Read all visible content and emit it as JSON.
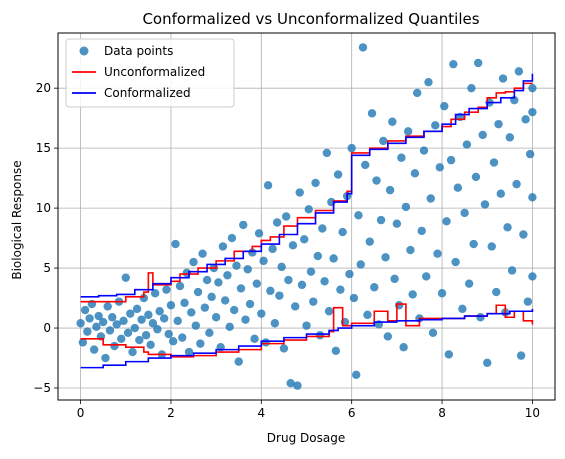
{
  "chart_data": {
    "type": "scatter",
    "title": "Conformalized vs Unconformalized Quantiles",
    "xlabel": "Drug Dosage",
    "ylabel": "Biological Response",
    "xlim": [
      -0.5,
      10.5
    ],
    "ylim": [
      -6.0,
      24.6
    ],
    "xticks": [
      0,
      2,
      4,
      6,
      8,
      10
    ],
    "yticks": [
      -5,
      0,
      5,
      10,
      15,
      20
    ],
    "grid": true,
    "legend_position": "top-left",
    "legend": [
      {
        "label": "Data points",
        "kind": "marker",
        "color": "#1f77b4"
      },
      {
        "label": "Unconformalized",
        "kind": "line",
        "color": "#ff0000"
      },
      {
        "label": "Conformalized",
        "kind": "line",
        "color": "#0000ff"
      }
    ],
    "series": [
      {
        "name": "Data points",
        "type": "scatter",
        "color": "#1f77b4",
        "points": [
          [
            0.0,
            0.4
          ],
          [
            0.05,
            -1.2
          ],
          [
            0.1,
            1.5
          ],
          [
            0.15,
            -0.3
          ],
          [
            0.2,
            0.8
          ],
          [
            0.25,
            2.0
          ],
          [
            0.3,
            -1.8
          ],
          [
            0.35,
            0.1
          ],
          [
            0.4,
            1.0
          ],
          [
            0.45,
            -0.7
          ],
          [
            0.5,
            0.5
          ],
          [
            0.55,
            -2.5
          ],
          [
            0.6,
            1.8
          ],
          [
            0.65,
            -0.2
          ],
          [
            0.7,
            0.9
          ],
          [
            0.75,
            -1.5
          ],
          [
            0.8,
            0.3
          ],
          [
            0.85,
            2.2
          ],
          [
            0.9,
            -0.9
          ],
          [
            0.95,
            0.6
          ],
          [
            1.0,
            4.2
          ],
          [
            1.05,
            -0.4
          ],
          [
            1.1,
            1.2
          ],
          [
            1.15,
            -2.0
          ],
          [
            1.2,
            0.0
          ],
          [
            1.25,
            1.6
          ],
          [
            1.3,
            -1.0
          ],
          [
            1.35,
            0.7
          ],
          [
            1.4,
            2.5
          ],
          [
            1.45,
            -0.6
          ],
          [
            1.5,
            1.1
          ],
          [
            1.55,
            -1.4
          ],
          [
            1.6,
            0.4
          ],
          [
            1.65,
            2.9
          ],
          [
            1.7,
            -0.1
          ],
          [
            1.75,
            1.4
          ],
          [
            1.8,
            -2.2
          ],
          [
            1.85,
            0.8
          ],
          [
            1.9,
            3.2
          ],
          [
            1.95,
            -0.5
          ],
          [
            2.0,
            1.9
          ],
          [
            2.05,
            -1.1
          ],
          [
            2.1,
            7.0
          ],
          [
            2.15,
            0.6
          ],
          [
            2.2,
            3.5
          ],
          [
            2.25,
            -0.8
          ],
          [
            2.3,
            2.1
          ],
          [
            2.35,
            4.6
          ],
          [
            2.4,
            -2.0
          ],
          [
            2.45,
            1.3
          ],
          [
            2.5,
            5.5
          ],
          [
            2.55,
            0.2
          ],
          [
            2.6,
            3.0
          ],
          [
            2.65,
            -1.3
          ],
          [
            2.7,
            6.2
          ],
          [
            2.75,
            1.7
          ],
          [
            2.8,
            4.0
          ],
          [
            2.85,
            -0.4
          ],
          [
            2.9,
            2.6
          ],
          [
            2.95,
            5.0
          ],
          [
            3.0,
            0.9
          ],
          [
            3.05,
            3.8
          ],
          [
            3.1,
            -1.6
          ],
          [
            3.15,
            6.8
          ],
          [
            3.2,
            2.3
          ],
          [
            3.25,
            4.4
          ],
          [
            3.3,
            0.1
          ],
          [
            3.35,
            7.5
          ],
          [
            3.4,
            1.5
          ],
          [
            3.45,
            5.2
          ],
          [
            3.5,
            -2.8
          ],
          [
            3.55,
            3.3
          ],
          [
            3.6,
            8.6
          ],
          [
            3.65,
            0.7
          ],
          [
            3.7,
            4.9
          ],
          [
            3.75,
            2.0
          ],
          [
            3.8,
            6.3
          ],
          [
            3.85,
            -0.9
          ],
          [
            3.9,
            3.7
          ],
          [
            3.95,
            7.9
          ],
          [
            4.0,
            1.2
          ],
          [
            4.05,
            5.6
          ],
          [
            4.1,
            -1.2
          ],
          [
            4.15,
            11.9
          ],
          [
            4.2,
            3.1
          ],
          [
            4.25,
            6.6
          ],
          [
            4.3,
            0.4
          ],
          [
            4.35,
            8.8
          ],
          [
            4.4,
            2.7
          ],
          [
            4.45,
            5.1
          ],
          [
            4.5,
            -1.7
          ],
          [
            4.55,
            9.3
          ],
          [
            4.6,
            4.0
          ],
          [
            4.65,
            -4.6
          ],
          [
            4.7,
            6.9
          ],
          [
            4.75,
            1.8
          ],
          [
            4.8,
            -4.8
          ],
          [
            4.85,
            11.3
          ],
          [
            4.9,
            3.6
          ],
          [
            4.95,
            7.4
          ],
          [
            5.0,
            0.2
          ],
          [
            5.05,
            9.9
          ],
          [
            5.1,
            4.7
          ],
          [
            5.15,
            2.2
          ],
          [
            5.2,
            12.1
          ],
          [
            5.25,
            6.0
          ],
          [
            5.3,
            -0.6
          ],
          [
            5.35,
            8.3
          ],
          [
            5.4,
            3.9
          ],
          [
            5.45,
            14.6
          ],
          [
            5.5,
            1.4
          ],
          [
            5.55,
            10.5
          ],
          [
            5.6,
            5.8
          ],
          [
            5.65,
            -1.9
          ],
          [
            5.7,
            12.8
          ],
          [
            5.75,
            3.2
          ],
          [
            5.8,
            8.0
          ],
          [
            5.85,
            0.5
          ],
          [
            5.9,
            11.0
          ],
          [
            5.95,
            4.5
          ],
          [
            6.0,
            15.0
          ],
          [
            6.05,
            2.5
          ],
          [
            6.1,
            -3.9
          ],
          [
            6.15,
            9.4
          ],
          [
            6.2,
            5.3
          ],
          [
            6.25,
            23.4
          ],
          [
            6.3,
            13.6
          ],
          [
            6.35,
            1.1
          ],
          [
            6.4,
            7.2
          ],
          [
            6.45,
            17.9
          ],
          [
            6.5,
            3.4
          ],
          [
            6.55,
            12.3
          ],
          [
            6.6,
            0.3
          ],
          [
            6.65,
            9.0
          ],
          [
            6.7,
            15.6
          ],
          [
            6.75,
            5.9
          ],
          [
            6.8,
            -0.7
          ],
          [
            6.85,
            11.5
          ],
          [
            6.9,
            17.2
          ],
          [
            6.95,
            4.1
          ],
          [
            7.0,
            8.7
          ],
          [
            7.05,
            1.9
          ],
          [
            7.1,
            14.2
          ],
          [
            7.15,
            -1.6
          ],
          [
            7.2,
            10.1
          ],
          [
            7.25,
            16.4
          ],
          [
            7.3,
            6.5
          ],
          [
            7.35,
            2.8
          ],
          [
            7.4,
            12.9
          ],
          [
            7.45,
            19.6
          ],
          [
            7.5,
            0.8
          ],
          [
            7.55,
            8.1
          ],
          [
            7.6,
            14.8
          ],
          [
            7.65,
            4.3
          ],
          [
            7.7,
            20.5
          ],
          [
            7.75,
            10.8
          ],
          [
            7.8,
            -0.4
          ],
          [
            7.85,
            16.9
          ],
          [
            7.9,
            6.2
          ],
          [
            7.95,
            13.4
          ],
          [
            8.0,
            2.9
          ],
          [
            8.05,
            18.5
          ],
          [
            8.1,
            8.9
          ],
          [
            8.15,
            -2.2
          ],
          [
            8.2,
            14.0
          ],
          [
            8.25,
            22.0
          ],
          [
            8.3,
            5.5
          ],
          [
            8.35,
            11.7
          ],
          [
            8.4,
            17.6
          ],
          [
            8.45,
            1.6
          ],
          [
            8.5,
            9.6
          ],
          [
            8.55,
            15.3
          ],
          [
            8.6,
            3.7
          ],
          [
            8.65,
            20.0
          ],
          [
            8.7,
            7.0
          ],
          [
            8.75,
            12.6
          ],
          [
            8.8,
            22.1
          ],
          [
            8.85,
            0.9
          ],
          [
            8.9,
            16.1
          ],
          [
            8.95,
            10.3
          ],
          [
            9.0,
            -2.9
          ],
          [
            9.05,
            18.8
          ],
          [
            9.1,
            6.8
          ],
          [
            9.15,
            13.8
          ],
          [
            9.2,
            3.0
          ],
          [
            9.25,
            17.0
          ],
          [
            9.3,
            11.2
          ],
          [
            9.35,
            20.8
          ],
          [
            9.4,
            1.3
          ],
          [
            9.45,
            8.4
          ],
          [
            9.5,
            15.9
          ],
          [
            9.55,
            4.8
          ],
          [
            9.6,
            19.0
          ],
          [
            9.65,
            12.0
          ],
          [
            9.7,
            21.4
          ],
          [
            9.75,
            -2.3
          ],
          [
            9.8,
            7.8
          ],
          [
            9.85,
            17.4
          ],
          [
            9.9,
            2.2
          ],
          [
            9.95,
            14.5
          ],
          [
            10.0,
            20.0
          ],
          [
            10.0,
            4.3
          ],
          [
            10.0,
            10.9
          ],
          [
            10.0,
            18.0
          ]
        ]
      },
      {
        "name": "Unconformalized",
        "type": "step-band",
        "color": "#ff0000",
        "upper": [
          [
            0.0,
            2.2
          ],
          [
            0.5,
            2.2
          ],
          [
            1.0,
            2.6
          ],
          [
            1.4,
            3.0
          ],
          [
            1.5,
            4.6
          ],
          [
            1.6,
            3.6
          ],
          [
            2.0,
            3.9
          ],
          [
            2.2,
            4.5
          ],
          [
            2.6,
            5.0
          ],
          [
            3.0,
            5.6
          ],
          [
            3.4,
            6.4
          ],
          [
            3.8,
            6.8
          ],
          [
            4.0,
            7.3
          ],
          [
            4.2,
            7.6
          ],
          [
            4.5,
            8.5
          ],
          [
            4.8,
            9.2
          ],
          [
            5.2,
            9.8
          ],
          [
            5.6,
            10.6
          ],
          [
            5.9,
            11.4
          ],
          [
            6.0,
            14.6
          ],
          [
            6.4,
            15.0
          ],
          [
            6.8,
            15.6
          ],
          [
            7.2,
            16.0
          ],
          [
            7.6,
            16.4
          ],
          [
            8.0,
            16.8
          ],
          [
            8.2,
            17.4
          ],
          [
            8.5,
            18.0
          ],
          [
            8.8,
            18.4
          ],
          [
            9.0,
            19.2
          ],
          [
            9.2,
            19.6
          ],
          [
            9.4,
            19.7
          ],
          [
            9.6,
            20.0
          ],
          [
            9.8,
            20.4
          ],
          [
            10.0,
            20.4
          ]
        ],
        "lower": [
          [
            0.0,
            -0.9
          ],
          [
            0.5,
            -1.4
          ],
          [
            1.0,
            -1.6
          ],
          [
            1.4,
            -2.0
          ],
          [
            1.5,
            -2.2
          ],
          [
            2.0,
            -2.4
          ],
          [
            2.5,
            -2.3
          ],
          [
            3.0,
            -2.0
          ],
          [
            3.5,
            -1.8
          ],
          [
            4.0,
            -1.3
          ],
          [
            4.5,
            -1.0
          ],
          [
            5.0,
            -0.7
          ],
          [
            5.5,
            -0.3
          ],
          [
            5.6,
            1.7
          ],
          [
            5.8,
            0.2
          ],
          [
            6.0,
            0.4
          ],
          [
            6.5,
            1.4
          ],
          [
            6.8,
            0.6
          ],
          [
            7.0,
            2.0
          ],
          [
            7.2,
            0.2
          ],
          [
            7.5,
            0.8
          ],
          [
            8.0,
            0.8
          ],
          [
            8.5,
            1.0
          ],
          [
            9.0,
            1.2
          ],
          [
            9.2,
            1.9
          ],
          [
            9.4,
            0.9
          ],
          [
            9.6,
            1.4
          ],
          [
            9.8,
            0.6
          ],
          [
            10.0,
            0.3
          ]
        ]
      },
      {
        "name": "Conformalized",
        "type": "step-band",
        "color": "#0000ff",
        "upper": [
          [
            0.0,
            2.6
          ],
          [
            0.4,
            2.7
          ],
          [
            0.8,
            2.8
          ],
          [
            1.2,
            3.2
          ],
          [
            1.6,
            3.7
          ],
          [
            2.0,
            4.2
          ],
          [
            2.4,
            4.7
          ],
          [
            2.8,
            5.3
          ],
          [
            3.2,
            5.8
          ],
          [
            3.6,
            6.4
          ],
          [
            4.0,
            7.0
          ],
          [
            4.4,
            7.8
          ],
          [
            4.8,
            8.7
          ],
          [
            5.2,
            9.6
          ],
          [
            5.6,
            10.5
          ],
          [
            5.9,
            11.2
          ],
          [
            6.0,
            14.4
          ],
          [
            6.4,
            14.9
          ],
          [
            6.8,
            15.4
          ],
          [
            7.2,
            15.9
          ],
          [
            7.6,
            16.4
          ],
          [
            8.0,
            17.0
          ],
          [
            8.3,
            17.8
          ],
          [
            8.6,
            18.3
          ],
          [
            9.0,
            18.8
          ],
          [
            9.3,
            19.2
          ],
          [
            9.6,
            19.8
          ],
          [
            9.8,
            20.6
          ],
          [
            10.0,
            21.2
          ]
        ],
        "lower": [
          [
            0.0,
            -3.3
          ],
          [
            0.5,
            -3.1
          ],
          [
            1.0,
            -2.8
          ],
          [
            1.5,
            -2.5
          ],
          [
            2.0,
            -2.3
          ],
          [
            2.5,
            -2.1
          ],
          [
            3.0,
            -1.8
          ],
          [
            3.5,
            -1.5
          ],
          [
            4.0,
            -1.1
          ],
          [
            4.5,
            -0.8
          ],
          [
            5.0,
            -0.5
          ],
          [
            5.5,
            -0.2
          ],
          [
            5.7,
            0.0
          ],
          [
            6.0,
            0.2
          ],
          [
            6.5,
            0.5
          ],
          [
            7.0,
            0.6
          ],
          [
            7.5,
            0.7
          ],
          [
            8.0,
            0.8
          ],
          [
            8.5,
            1.0
          ],
          [
            9.0,
            1.2
          ],
          [
            9.5,
            1.4
          ],
          [
            10.0,
            1.6
          ]
        ]
      }
    ]
  }
}
